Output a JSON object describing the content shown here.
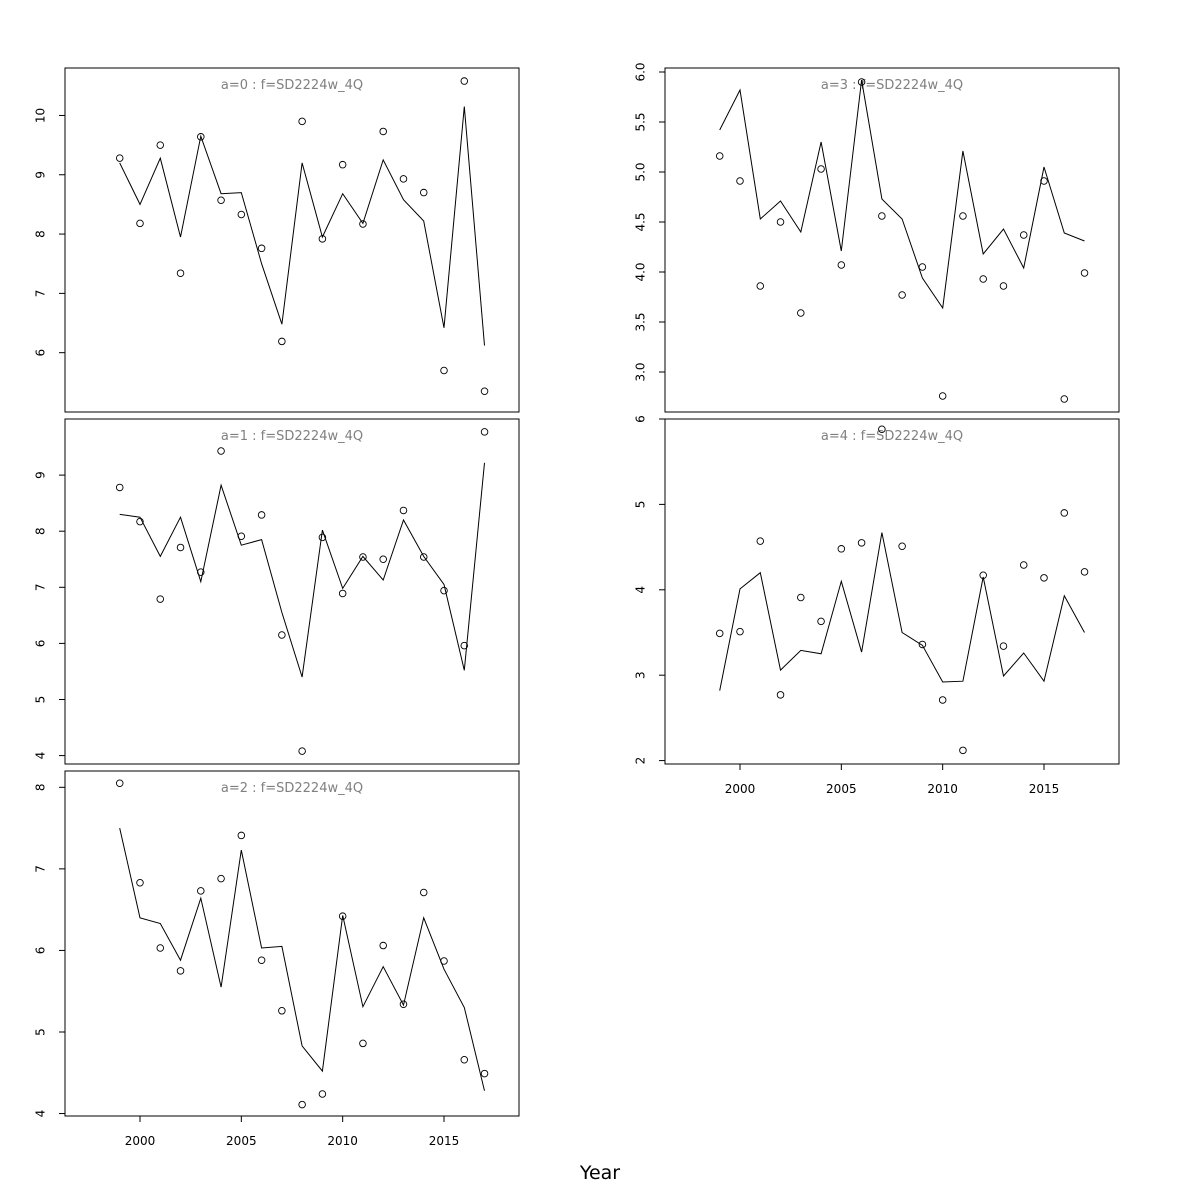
{
  "chart_data": {
    "type": "line",
    "xlabel": "Year",
    "x": [
      1999,
      2000,
      2001,
      2002,
      2003,
      2004,
      2005,
      2006,
      2007,
      2008,
      2009,
      2010,
      2011,
      2012,
      2013,
      2014,
      2015,
      2016,
      2017
    ],
    "xlim": [
      1996.3,
      2018.7
    ],
    "x_ticks": [
      2000,
      2005,
      2010,
      2015
    ],
    "panels": [
      {
        "title": "a=0  :  f=SD2224w_4Q",
        "ylim": [
          5.0,
          10.8
        ],
        "y_ticks": [
          6,
          7,
          8,
          9,
          10
        ],
        "fitted": [
          9.2,
          8.5,
          9.28,
          7.95,
          9.65,
          8.68,
          8.7,
          7.5,
          6.48,
          9.2,
          7.95,
          8.68,
          8.18,
          9.25,
          8.58,
          8.22,
          6.42,
          10.15,
          6.12
        ],
        "observed": [
          9.28,
          8.18,
          9.5,
          7.34,
          9.64,
          8.57,
          8.33,
          7.76,
          6.19,
          9.9,
          7.92,
          9.17,
          8.17,
          9.73,
          8.93,
          8.7,
          5.7,
          10.58,
          5.35
        ]
      },
      {
        "title": "a=1  :  f=SD2224w_4Q",
        "ylim": [
          3.85,
          10.0
        ],
        "y_ticks": [
          4,
          5,
          6,
          7,
          8,
          9
        ],
        "fitted": [
          8.3,
          8.25,
          7.55,
          8.25,
          7.1,
          8.82,
          7.75,
          7.85,
          6.55,
          5.4,
          8.02,
          6.98,
          7.55,
          7.13,
          8.2,
          7.55,
          7.05,
          5.52,
          9.22
        ],
        "observed": [
          8.78,
          8.17,
          6.79,
          7.71,
          7.27,
          9.43,
          7.91,
          8.29,
          6.15,
          4.08,
          7.89,
          6.89,
          7.54,
          7.5,
          8.37,
          7.54,
          6.94,
          5.96,
          9.77
        ]
      },
      {
        "title": "a=2  :  f=SD2224w_4Q",
        "ylim": [
          3.97,
          8.2
        ],
        "y_ticks": [
          4,
          5,
          6,
          7,
          8
        ],
        "fitted": [
          7.5,
          6.4,
          6.33,
          5.88,
          6.64,
          5.55,
          7.23,
          6.03,
          6.05,
          4.83,
          4.52,
          6.43,
          5.31,
          5.8,
          5.33,
          6.4,
          5.77,
          5.3,
          4.28
        ],
        "observed": [
          8.05,
          6.83,
          6.03,
          5.75,
          6.73,
          6.88,
          7.41,
          5.88,
          5.26,
          4.11,
          4.24,
          6.42,
          4.86,
          6.06,
          5.34,
          6.71,
          5.87,
          4.66,
          4.49
        ]
      },
      {
        "title": "a=3  :  f=SD2224w_4Q",
        "ylim": [
          2.6,
          6.04
        ],
        "y_ticks": [
          3.0,
          3.5,
          4.0,
          4.5,
          5.0,
          5.5,
          6.0
        ],
        "fitted": [
          5.42,
          5.82,
          4.53,
          4.71,
          4.4,
          5.3,
          4.21,
          5.92,
          4.73,
          4.53,
          3.94,
          3.64,
          5.21,
          4.18,
          4.43,
          4.04,
          5.05,
          4.39,
          4.31
        ],
        "observed": [
          5.16,
          4.91,
          3.86,
          4.5,
          3.59,
          5.03,
          4.07,
          5.9,
          4.56,
          3.77,
          4.05,
          2.76,
          4.56,
          3.93,
          3.86,
          4.37,
          4.91,
          2.73,
          3.99
        ]
      },
      {
        "title": "a=4  :  f=SD2224w_4Q",
        "ylim": [
          1.96,
          6.0
        ],
        "y_ticks": [
          2,
          3,
          4,
          5,
          6
        ],
        "fitted": [
          2.82,
          4.01,
          4.2,
          3.06,
          3.29,
          3.25,
          4.1,
          3.27,
          4.67,
          3.5,
          3.35,
          2.92,
          2.93,
          4.15,
          2.99,
          3.26,
          2.93,
          3.93,
          3.5
        ],
        "observed": [
          3.49,
          3.51,
          4.57,
          2.77,
          3.91,
          3.63,
          4.48,
          4.55,
          5.88,
          4.51,
          3.36,
          2.71,
          2.12,
          4.17,
          3.34,
          4.29,
          4.14,
          4.9,
          4.21
        ]
      }
    ]
  }
}
